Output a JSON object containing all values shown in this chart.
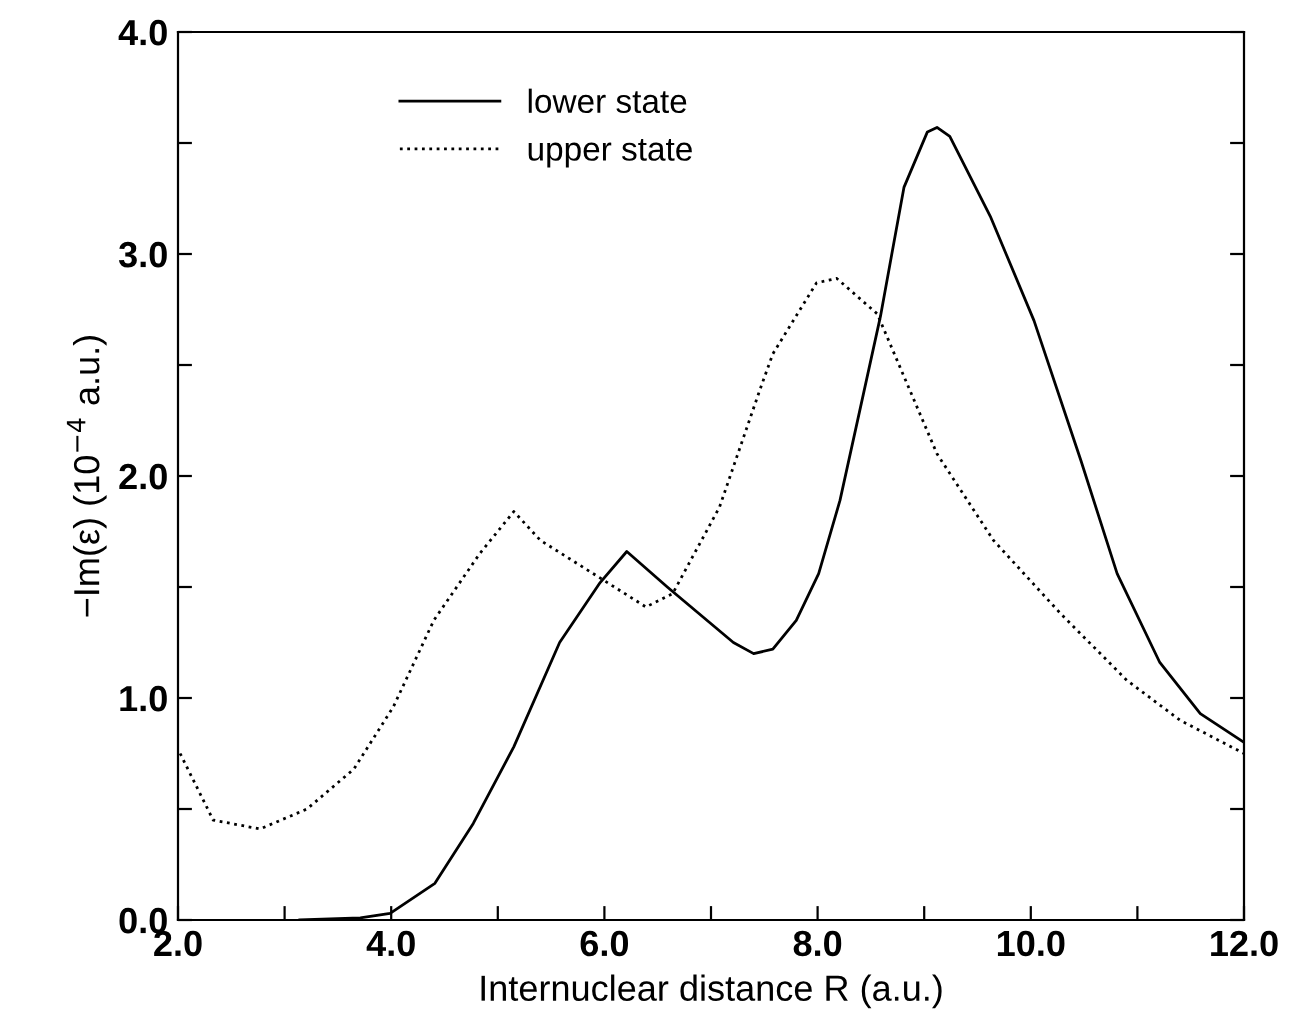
{
  "chart_data": {
    "type": "line",
    "xlabel": "Internuclear distance R (a.u.)",
    "ylabel": "−Im(ε) (10$^{−4}$ a.u.)",
    "xlim": [
      2,
      12
    ],
    "ylim": [
      0,
      4
    ],
    "xticks": [
      {
        "value": 2,
        "label": "2.0"
      },
      {
        "value": 3,
        "label": null
      },
      {
        "value": 4,
        "label": "4.0"
      },
      {
        "value": 5,
        "label": null
      },
      {
        "value": 6,
        "label": "6.0"
      },
      {
        "value": 7,
        "label": null
      },
      {
        "value": 8,
        "label": "8.0"
      },
      {
        "value": 9,
        "label": null
      },
      {
        "value": 10,
        "label": "10.0"
      },
      {
        "value": 11,
        "label": null
      },
      {
        "value": 12,
        "label": "12.0"
      }
    ],
    "yticks": [
      {
        "value": 0,
        "label": "0.0"
      },
      {
        "value": 0.5,
        "label": null
      },
      {
        "value": 1,
        "label": "1.0"
      },
      {
        "value": 1.5,
        "label": null
      },
      {
        "value": 2,
        "label": "2.0"
      },
      {
        "value": 2.5,
        "label": null
      },
      {
        "value": 3,
        "label": "3.0"
      },
      {
        "value": 3.5,
        "label": null
      },
      {
        "value": 4,
        "label": "4.0"
      }
    ],
    "grid": false,
    "legend": "top left",
    "series": [
      {
        "name": "lower state",
        "color": "#000000",
        "line_style": "solid",
        "x": [
          3.14,
          3.71,
          3.99,
          4.41,
          4.77,
          5.15,
          5.58,
          5.96,
          6.21,
          6.59,
          7.21,
          7.4,
          7.58,
          7.8,
          8.01,
          8.21,
          8.43,
          8.59,
          8.81,
          9.03,
          9.12,
          9.24,
          9.62,
          10.03,
          10.47,
          10.81,
          11.21,
          11.59,
          12.0
        ],
        "values": [
          0.0,
          0.01,
          0.03,
          0.165,
          0.435,
          0.78,
          1.25,
          1.52,
          1.66,
          1.5,
          1.25,
          1.2,
          1.22,
          1.35,
          1.56,
          1.89,
          2.37,
          2.72,
          3.3,
          3.55,
          3.57,
          3.53,
          3.17,
          2.7,
          2.07,
          1.56,
          1.16,
          0.93,
          0.8
        ]
      },
      {
        "name": "upper state",
        "color": "#000000",
        "line_style": "dotted",
        "x": [
          2.02,
          2.33,
          2.77,
          3.21,
          3.65,
          4.02,
          4.4,
          4.83,
          5.15,
          5.4,
          5.83,
          6.39,
          6.64,
          7.08,
          7.46,
          7.58,
          7.99,
          8.18,
          8.56,
          9.12,
          9.65,
          10.28,
          10.9,
          11.4,
          12.0
        ],
        "values": [
          0.75,
          0.45,
          0.41,
          0.5,
          0.68,
          0.96,
          1.35,
          1.65,
          1.84,
          1.71,
          1.58,
          1.41,
          1.47,
          1.86,
          2.39,
          2.55,
          2.87,
          2.89,
          2.73,
          2.1,
          1.71,
          1.38,
          1.08,
          0.9,
          0.75
        ]
      }
    ]
  }
}
